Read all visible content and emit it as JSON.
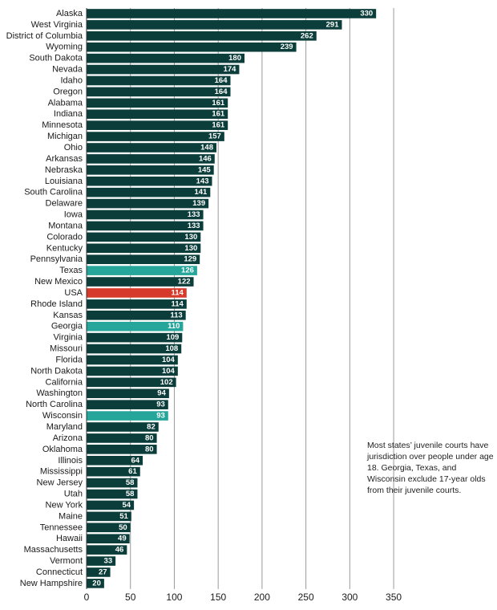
{
  "chart_data": {
    "type": "bar",
    "orientation": "horizontal",
    "categories": [
      "Alaska",
      "West Virginia",
      "District of Columbia",
      "Wyoming",
      "South Dakota",
      "Nevada",
      "Idaho",
      "Oregon",
      "Alabama",
      "Indiana",
      "Minnesota",
      "Michigan",
      "Ohio",
      "Arkansas",
      "Nebraska",
      "Louisiana",
      "South Carolina",
      "Delaware",
      "Iowa",
      "Montana",
      "Colorado",
      "Kentucky",
      "Pennsylvania",
      "Texas",
      "New Mexico",
      "USA",
      "Rhode Island",
      "Kansas",
      "Georgia",
      "Virginia",
      "Missouri",
      "Florida",
      "North Dakota",
      "California",
      "Washington",
      "North Carolina",
      "Wisconsin",
      "Maryland",
      "Arizona",
      "Oklahoma",
      "Illinois",
      "Mississippi",
      "New Jersey",
      "Utah",
      "New York",
      "Maine",
      "Tennessee",
      "Hawaii",
      "Massachusetts",
      "Vermont",
      "Connecticut",
      "New Hampshire"
    ],
    "values": [
      330,
      291,
      262,
      239,
      180,
      174,
      164,
      164,
      161,
      161,
      161,
      157,
      148,
      146,
      145,
      143,
      141,
      139,
      133,
      133,
      130,
      130,
      129,
      126,
      122,
      114,
      114,
      113,
      110,
      109,
      108,
      104,
      104,
      102,
      94,
      93,
      93,
      82,
      80,
      80,
      64,
      61,
      58,
      58,
      54,
      51,
      50,
      49,
      46,
      33,
      27,
      20
    ],
    "highlight": {
      "Texas": "teal",
      "Georgia": "teal",
      "Wisconsin": "teal",
      "USA": "red"
    },
    "xlim": [
      0,
      350
    ],
    "xticks": [
      0,
      50,
      100,
      150,
      200,
      250,
      300,
      350
    ],
    "xlabel": "",
    "ylabel": "",
    "title": "",
    "grid": "vertical",
    "colors": {
      "default": "#0b3d3a",
      "teal": "#26a69a",
      "red": "#d63a2a"
    }
  },
  "annotation": "Most states’ juvenile courts have jurisdiction over people under age 18. Georgia, Texas, and Wisconsin exclude 17-year olds from their juvenile courts."
}
